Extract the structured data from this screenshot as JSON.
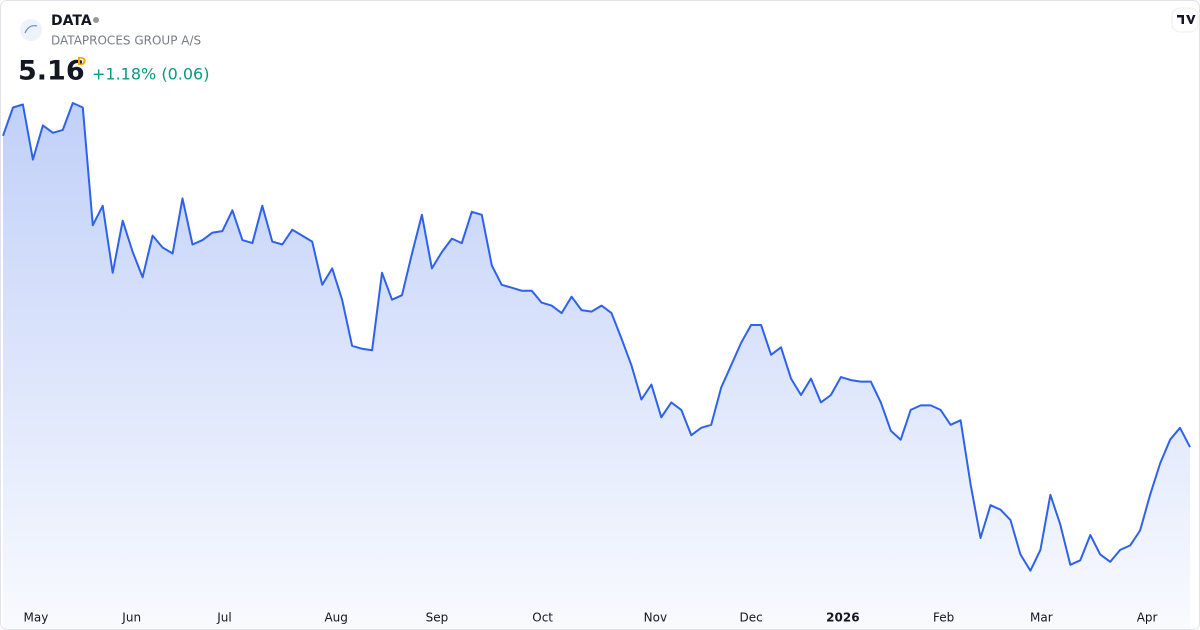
{
  "header": {
    "symbol": "DATA",
    "name": "DATAPROCES GROUP A/S",
    "price": 5.16,
    "price_flag": "D",
    "change": "+1.18% (0.06)"
  },
  "chart_data": {
    "type": "area",
    "color": "#2f62ea",
    "values": [
      7.25,
      7.44,
      7.46,
      7.09,
      7.32,
      7.27,
      7.29,
      7.47,
      7.44,
      6.65,
      6.78,
      6.33,
      6.68,
      6.47,
      6.3,
      6.58,
      6.5,
      6.46,
      6.83,
      6.52,
      6.55,
      6.6,
      6.61,
      6.75,
      6.55,
      6.53,
      6.78,
      6.54,
      6.52,
      6.62,
      6.58,
      6.54,
      6.25,
      6.36,
      6.15,
      5.84,
      5.82,
      5.81,
      6.33,
      6.15,
      6.18,
      6.46,
      6.72,
      6.36,
      6.47,
      6.56,
      6.53,
      6.74,
      6.72,
      6.38,
      6.25,
      6.23,
      6.21,
      6.21,
      6.13,
      6.11,
      6.06,
      6.17,
      6.08,
      6.07,
      6.11,
      6.06,
      5.89,
      5.71,
      5.48,
      5.58,
      5.36,
      5.46,
      5.41,
      5.24,
      5.29,
      5.31,
      5.56,
      5.71,
      5.86,
      5.98,
      5.98,
      5.78,
      5.83,
      5.62,
      5.51,
      5.62,
      5.46,
      5.51,
      5.63,
      5.61,
      5.6,
      5.6,
      5.46,
      5.27,
      5.21,
      5.41,
      5.44,
      5.44,
      5.41,
      5.31,
      5.34,
      4.91,
      4.55,
      4.77,
      4.74,
      4.67,
      4.44,
      4.33,
      4.47,
      4.84,
      4.64,
      4.37,
      4.4,
      4.57,
      4.44,
      4.39,
      4.47,
      4.5,
      4.6,
      4.84,
      5.05,
      5.21,
      5.29,
      5.16
    ],
    "xlim": [
      0,
      119
    ],
    "ylim": [
      4.1,
      7.9
    ],
    "xticks": [
      {
        "value": 3.3,
        "label": "May"
      },
      {
        "value": 12.9,
        "label": "Jun"
      },
      {
        "value": 22.2,
        "label": "Jul"
      },
      {
        "value": 33.4,
        "label": "Aug"
      },
      {
        "value": 43.5,
        "label": "Sep"
      },
      {
        "value": 54.1,
        "label": "Oct"
      },
      {
        "value": 65.4,
        "label": "Nov"
      },
      {
        "value": 75.0,
        "label": "Dec"
      },
      {
        "value": 84.2,
        "label": "2026"
      },
      {
        "value": 94.3,
        "label": "Feb"
      },
      {
        "value": 104.1,
        "label": "Mar"
      },
      {
        "value": 114.7,
        "label": "Apr"
      }
    ]
  }
}
